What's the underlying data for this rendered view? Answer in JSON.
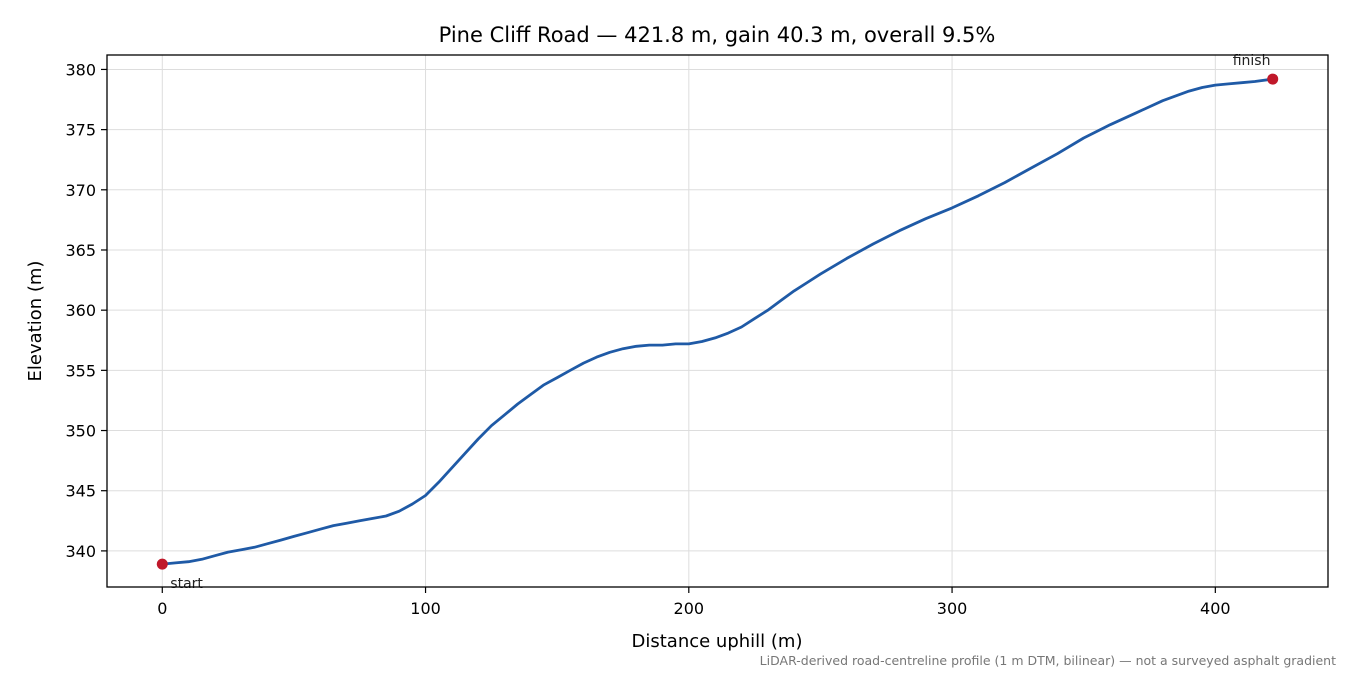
{
  "chart_data": {
    "type": "line",
    "title": "Pine Cliff Road — 421.8 m, gain 40.3 m, overall 9.5%",
    "xlabel": "Distance uphill (m)",
    "ylabel": "Elevation (m)",
    "xlim": [
      -21,
      442.8
    ],
    "ylim": [
      337.0,
      381.2
    ],
    "xticks": [
      0,
      100,
      200,
      300,
      400
    ],
    "yticks": [
      340,
      345,
      350,
      355,
      360,
      365,
      370,
      375,
      380
    ],
    "grid": true,
    "line_color": "#1f5aa6",
    "marker_color": "#c0182a",
    "series": [
      {
        "x": [
          0,
          5,
          10,
          15,
          20,
          25,
          30,
          35,
          40,
          45,
          50,
          55,
          60,
          65,
          70,
          75,
          80,
          85,
          90,
          95,
          100,
          105,
          110,
          115,
          120,
          125,
          130,
          135,
          140,
          145,
          150,
          155,
          160,
          165,
          170,
          175,
          180,
          185,
          190,
          195,
          200,
          205,
          210,
          215,
          220,
          225,
          230,
          235,
          240,
          245,
          250,
          260,
          270,
          280,
          290,
          300,
          310,
          320,
          330,
          340,
          350,
          360,
          370,
          380,
          390,
          395,
          400,
          405,
          410,
          415,
          421.8
        ],
        "y": [
          338.9,
          339.0,
          339.1,
          339.3,
          339.6,
          339.9,
          340.1,
          340.3,
          340.6,
          340.9,
          341.2,
          341.5,
          341.8,
          342.1,
          342.3,
          342.5,
          342.7,
          342.9,
          343.3,
          343.9,
          344.6,
          345.7,
          346.9,
          348.1,
          349.3,
          350.4,
          351.3,
          352.2,
          353.0,
          353.8,
          354.4,
          355.0,
          355.6,
          356.1,
          356.5,
          356.8,
          357.0,
          357.1,
          357.1,
          357.2,
          357.2,
          357.4,
          357.7,
          358.1,
          358.6,
          359.3,
          360.0,
          360.8,
          361.6,
          362.3,
          363.0,
          364.3,
          365.5,
          366.6,
          367.6,
          368.5,
          369.5,
          370.6,
          371.8,
          373.0,
          374.3,
          375.4,
          376.4,
          377.4,
          378.2,
          378.5,
          378.7,
          378.8,
          378.9,
          379.0,
          379.2
        ]
      }
    ],
    "annotations": [
      {
        "label": "start",
        "x": 0,
        "y": 338.9
      },
      {
        "label": "finish",
        "x": 421.8,
        "y": 379.2
      }
    ],
    "note": "LiDAR-derived road-centreline profile (1 m DTM, bilinear) — not a surveyed asphalt gradient"
  }
}
